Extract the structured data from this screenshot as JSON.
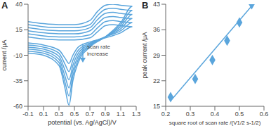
{
  "chart_data": [
    {
      "type": "line",
      "title": "A",
      "x_label": "potential (vs. Ag/AgCl)/V",
      "y_label": "current /μA",
      "annotation": "scan rate increase",
      "x": [
        -0.1,
        0.1,
        0.3,
        0.5,
        0.7,
        0.8,
        0.9,
        1.0,
        1.1,
        1.25,
        1.1,
        0.9,
        0.7,
        0.55,
        0.48,
        0.43,
        0.38,
        0.3,
        0.1,
        -0.1
      ],
      "xlim": [
        -0.1,
        1.3
      ],
      "xticks": [
        -0.1,
        0.1,
        0.3,
        0.5,
        0.7,
        0.9,
        1.1,
        1.3
      ],
      "ylim": [
        -60,
        40
      ],
      "yticks": [
        -60,
        -35,
        -10,
        15,
        40
      ],
      "series": [
        {
          "color": "#5aa5dc",
          "values": [
            8,
            6,
            5,
            5,
            7,
            13,
            19,
            20,
            19,
            18,
            12,
            7,
            3,
            -2,
            -10,
            -18,
            -13,
            -5,
            0,
            2
          ]
        },
        {
          "color": "#5aa5dc",
          "values": [
            11,
            9,
            8,
            8,
            10,
            17,
            23,
            24,
            23,
            22,
            14,
            8,
            2,
            -5,
            -15,
            -26,
            -19,
            -8,
            -2,
            0
          ]
        },
        {
          "color": "#5aa5dc",
          "values": [
            14,
            12,
            11,
            11,
            14,
            21,
            27,
            28,
            27,
            26,
            16,
            8,
            1,
            -8,
            -20,
            -34,
            -25,
            -11,
            -4,
            -2
          ]
        },
        {
          "color": "#5aa5dc",
          "values": [
            17,
            15,
            14,
            14,
            17,
            25,
            31,
            32,
            31,
            30,
            18,
            8,
            0,
            -11,
            -25,
            -42,
            -31,
            -14,
            -6,
            -4
          ]
        },
        {
          "color": "#5aa5dc",
          "values": [
            20,
            18,
            17,
            17,
            20,
            29,
            35,
            36,
            35,
            34,
            20,
            8,
            -1,
            -14,
            -30,
            -50,
            -37,
            -17,
            -8,
            -6
          ]
        },
        {
          "color": "#5aa5dc",
          "values": [
            23,
            21,
            20,
            20,
            24,
            33,
            39,
            40,
            39,
            38,
            22,
            8,
            -2,
            -17,
            -35,
            -59,
            -43,
            -20,
            -10,
            -8
          ]
        }
      ]
    },
    {
      "type": "scatter",
      "title": "B",
      "x_label": "square root of scan rate /(V1/2 s-1/2)",
      "y_label": "peak current /μA",
      "xlim": [
        0.2,
        0.6
      ],
      "xticks": [
        0.2,
        0.3,
        0.4,
        0.5,
        0.6
      ],
      "ylim": [
        15,
        43
      ],
      "yticks": [
        15,
        22,
        29,
        36,
        43
      ],
      "series": [
        {
          "type": "scatter",
          "marker": "diamond",
          "color": "#5aa5dc",
          "x": [
            0.22,
            0.32,
            0.39,
            0.45,
            0.5,
            0.55
          ],
          "values": [
            17.5,
            22.5,
            27.7,
            33,
            38,
            43
          ]
        },
        {
          "type": "line",
          "color": "#5aa5dc",
          "x": [
            0.22,
            0.55
          ],
          "values": [
            16.5,
            42.5
          ]
        }
      ]
    }
  ]
}
